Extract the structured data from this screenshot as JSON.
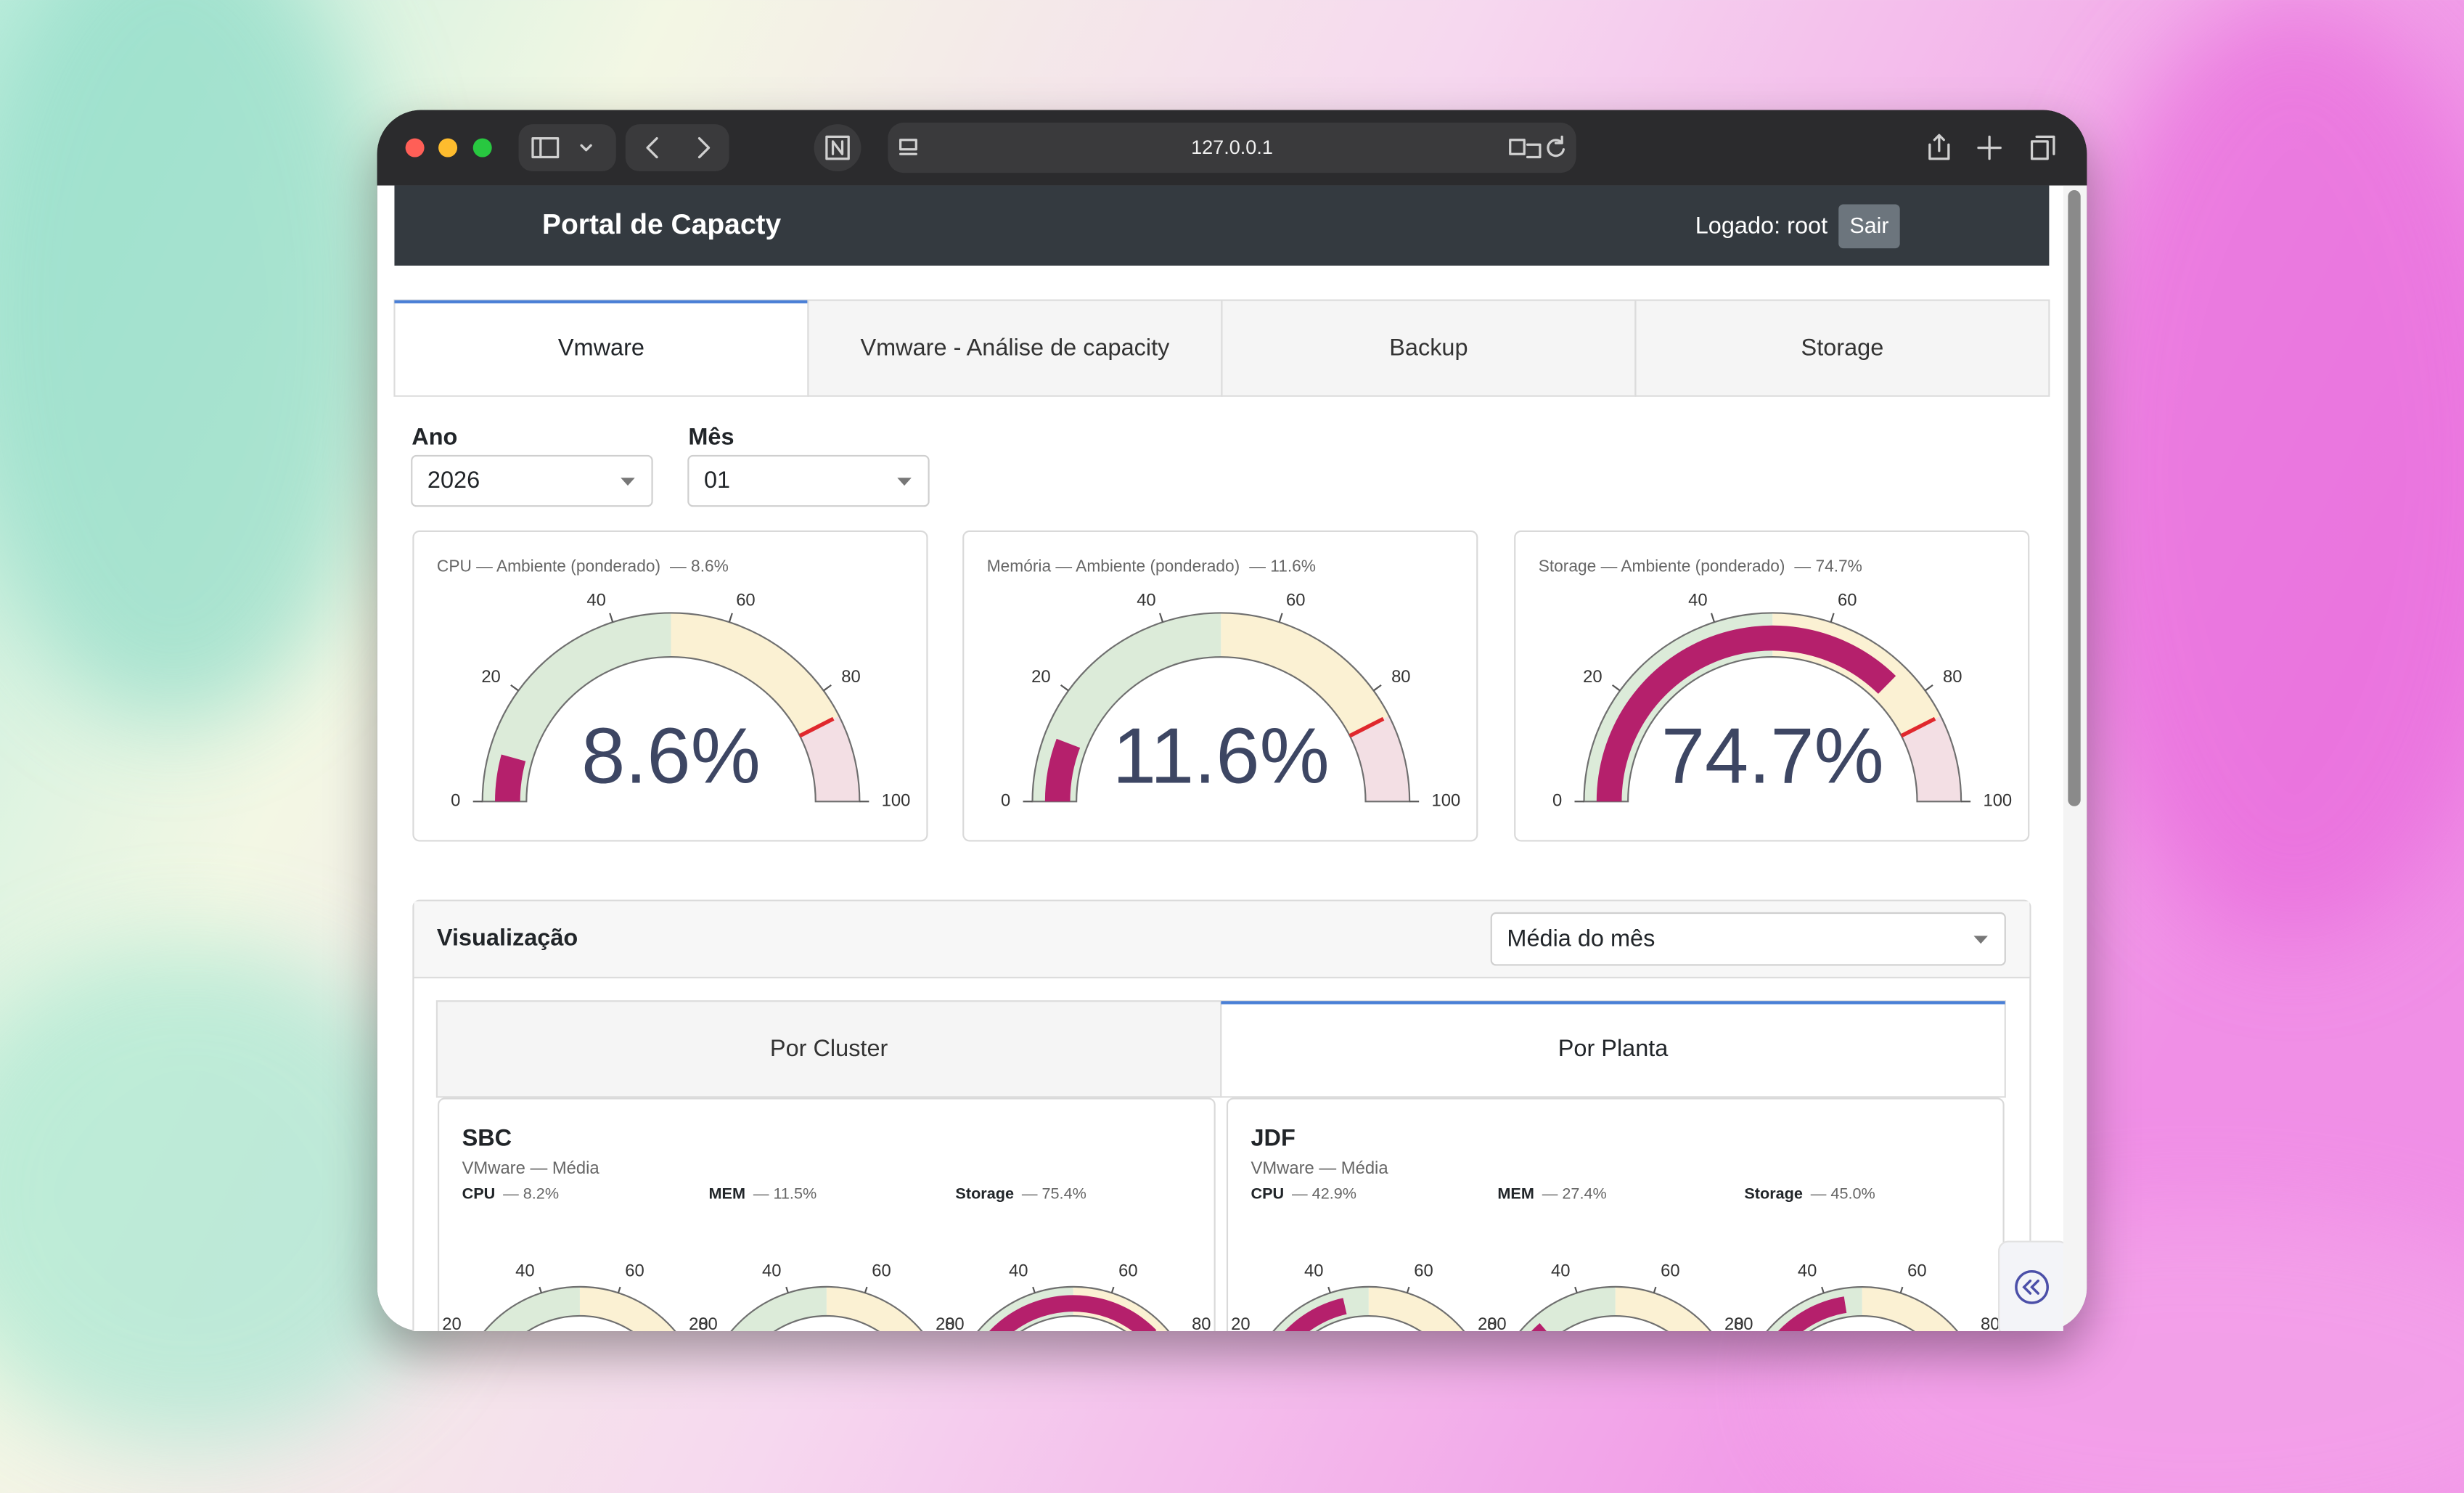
{
  "browser": {
    "url": "127.0.0.1"
  },
  "header": {
    "title": "Portal de Capacty",
    "user": "Logado: root",
    "logout": "Sair"
  },
  "tabs": [
    "Vmware",
    "Vmware - Análise de capacity",
    "Backup",
    "Storage"
  ],
  "active_tab": 0,
  "filters": [
    {
      "label": "Ano",
      "value": "2026"
    },
    {
      "label": "Mês",
      "value": "01"
    }
  ],
  "gauge_scale": {
    "lim": [
      0,
      100
    ],
    "ticks": [
      0,
      20,
      40,
      60,
      80,
      100
    ],
    "bands": [
      {
        "from": 0,
        "to": 50,
        "color": "#dcebd9"
      },
      {
        "from": 50,
        "to": 85,
        "color": "#fbf1d3"
      },
      {
        "from": 85,
        "to": 100,
        "color": "#f3dfe4"
      }
    ],
    "threshold": 85,
    "bar_color": "#b5206c",
    "threshold_color": "#e0282d"
  },
  "gauges": [
    {
      "caption": "CPU — Ambiente (ponderado)",
      "header_label": "— 8.6%",
      "value": 8.6,
      "value_label": "8.6%"
    },
    {
      "caption": "Memória — Ambiente (ponderado)",
      "header_label": "— 11.6%",
      "value": 11.6,
      "value_label": "11.6%"
    },
    {
      "caption": "Storage — Ambiente (ponderado)",
      "header_label": "— 74.7%",
      "value": 74.7,
      "value_label": "74.7%"
    }
  ],
  "visualization": {
    "title": "Visualização",
    "select": "Média do mês",
    "tabs": [
      "Por Cluster",
      "Por Planta"
    ],
    "active_tab": 1,
    "plants": [
      {
        "name": "SBC",
        "subtitle": "VMware — Média",
        "metrics": [
          {
            "name": "CPU",
            "label": "— 8.2%",
            "value": 8.2
          },
          {
            "name": "MEM",
            "label": "— 11.5%",
            "value": 11.5
          },
          {
            "name": "Storage",
            "label": "— 75.4%",
            "value": 75.4
          }
        ]
      },
      {
        "name": "JDF",
        "subtitle": "VMware — Média",
        "metrics": [
          {
            "name": "CPU",
            "label": "— 42.9%",
            "value": 42.9
          },
          {
            "name": "MEM",
            "label": "— 27.4%",
            "value": 27.4
          },
          {
            "name": "Storage",
            "label": "— 45.0%",
            "value": 45.0
          }
        ]
      }
    ]
  }
}
